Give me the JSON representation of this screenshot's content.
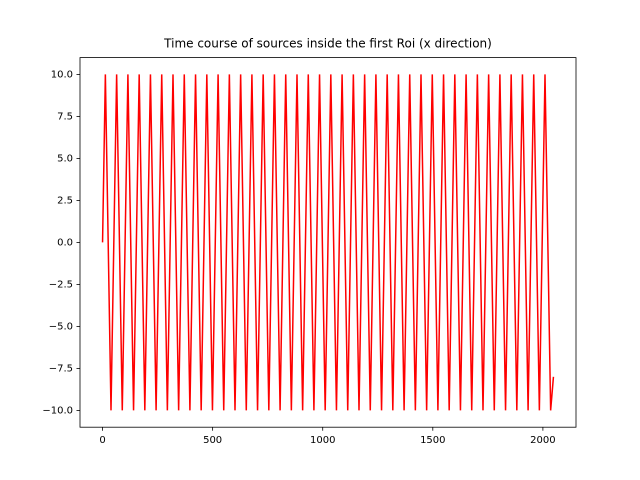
{
  "chart_data": {
    "type": "line",
    "title": "Time course of sources inside the first Roi  (x direction)",
    "color": "#ff0000",
    "x": [
      0,
      12.8,
      38.4,
      64,
      89.6,
      115.2,
      140.8,
      166.4,
      192,
      217.6,
      243.2,
      268.8,
      294.4,
      320,
      345.6,
      371.2,
      396.8,
      422.4,
      448,
      473.6,
      499.2,
      524.8,
      550.4,
      576,
      601.6,
      627.2,
      652.8,
      678.4,
      704,
      729.6,
      755.2,
      780.8,
      806.4,
      832,
      857.6,
      883.2,
      908.8,
      934.4,
      960,
      985.6,
      1011.2,
      1036.8,
      1062.4,
      1088,
      1113.6,
      1139.2,
      1164.8,
      1190.4,
      1216,
      1241.6,
      1267.2,
      1292.8,
      1318.4,
      1344,
      1369.6,
      1395.2,
      1420.8,
      1446.4,
      1472,
      1497.6,
      1523.2,
      1548.8,
      1574.4,
      1600,
      1625.6,
      1651.2,
      1676.8,
      1702.4,
      1728,
      1753.6,
      1779.2,
      1804.8,
      1830.4,
      1856,
      1881.6,
      1907.2,
      1932.8,
      1958.4,
      1984,
      2009.6,
      2035.2,
      2048
    ],
    "values": [
      0,
      10,
      -10,
      10,
      -10,
      10,
      -10,
      10,
      -10,
      10,
      -10,
      10,
      -10,
      10,
      -10,
      10,
      -10,
      10,
      -10,
      10,
      -10,
      10,
      -10,
      10,
      -10,
      10,
      -10,
      10,
      -10,
      10,
      -10,
      10,
      -10,
      10,
      -10,
      10,
      -10,
      10,
      -10,
      10,
      -10,
      10,
      -10,
      10,
      -10,
      10,
      -10,
      10,
      -10,
      10,
      -10,
      10,
      -10,
      10,
      -10,
      10,
      -10,
      10,
      -10,
      10,
      -10,
      10,
      -10,
      10,
      -10,
      10,
      -10,
      10,
      -10,
      10,
      -10,
      10,
      -10,
      10,
      -10,
      10,
      -10,
      10,
      -10,
      10,
      -10,
      -8
    ],
    "xlim": [
      -102.4,
      2150.4
    ],
    "xticks": [
      0,
      500,
      1000,
      1500,
      2000
    ],
    "ylim": [
      -11,
      11
    ],
    "yticks": [
      {
        "value": -10,
        "label": "−10.0"
      },
      {
        "value": -7.5,
        "label": "−7.5"
      },
      {
        "value": -5,
        "label": "−5.0"
      },
      {
        "value": -2.5,
        "label": "−2.5"
      },
      {
        "value": 0,
        "label": "0.0"
      },
      {
        "value": 2.5,
        "label": "2.5"
      },
      {
        "value": 5,
        "label": "5.0"
      },
      {
        "value": 7.5,
        "label": "7.5"
      },
      {
        "value": 10,
        "label": "10.0"
      }
    ],
    "grid": false
  }
}
